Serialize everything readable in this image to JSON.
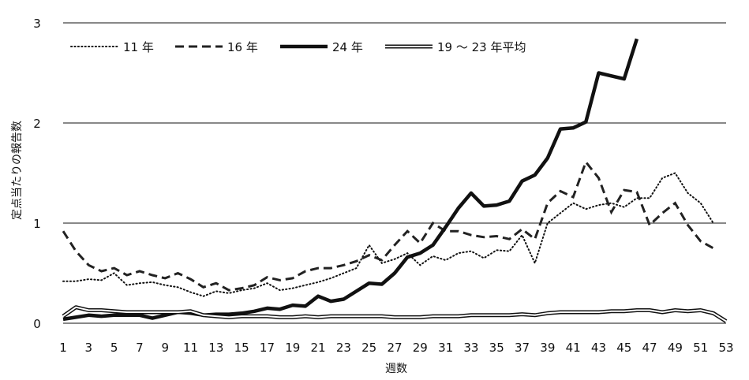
{
  "chart_data": {
    "type": "line",
    "title": "",
    "xlabel": "週数",
    "ylabel": "定点当たりの報告数",
    "ylim": [
      0,
      3
    ],
    "yticks": [
      "0",
      "1",
      "2",
      "3"
    ],
    "xlim": [
      1,
      53
    ],
    "xticks": [
      "1",
      "3",
      "5",
      "7",
      "9",
      "11",
      "13",
      "15",
      "17",
      "19",
      "21",
      "23",
      "25",
      "27",
      "29",
      "31",
      "33",
      "35",
      "37",
      "39",
      "41",
      "43",
      "45",
      "47",
      "49",
      "51",
      "53"
    ],
    "grid": "horizontal",
    "legend_position": "top-left",
    "series": [
      {
        "name": "11 年",
        "style": "dotted",
        "x": [
          1,
          2,
          3,
          4,
          5,
          6,
          7,
          8,
          9,
          10,
          11,
          12,
          13,
          14,
          15,
          16,
          17,
          18,
          19,
          20,
          21,
          22,
          23,
          24,
          25,
          26,
          27,
          28,
          29,
          30,
          31,
          32,
          33,
          34,
          35,
          36,
          37,
          38,
          39,
          40,
          41,
          42,
          43,
          44,
          45,
          46,
          47,
          48,
          49,
          50,
          51,
          52
        ],
        "values": [
          0.42,
          0.42,
          0.44,
          0.43,
          0.5,
          0.38,
          0.4,
          0.41,
          0.38,
          0.36,
          0.31,
          0.27,
          0.32,
          0.3,
          0.33,
          0.35,
          0.4,
          0.33,
          0.35,
          0.38,
          0.41,
          0.45,
          0.5,
          0.55,
          0.78,
          0.6,
          0.64,
          0.7,
          0.58,
          0.67,
          0.63,
          0.7,
          0.72,
          0.65,
          0.73,
          0.72,
          0.88,
          0.6,
          1.0,
          1.1,
          1.2,
          1.14,
          1.18,
          1.2,
          1.16,
          1.25,
          1.25,
          1.45,
          1.5,
          1.3,
          1.2,
          1.0
        ]
      },
      {
        "name": "16 年",
        "style": "dashed",
        "x": [
          1,
          2,
          3,
          4,
          5,
          6,
          7,
          8,
          9,
          10,
          11,
          12,
          13,
          14,
          15,
          16,
          17,
          18,
          19,
          20,
          21,
          22,
          23,
          24,
          25,
          26,
          27,
          28,
          29,
          30,
          31,
          32,
          33,
          34,
          35,
          36,
          37,
          38,
          39,
          40,
          41,
          42,
          43,
          44,
          45,
          46,
          47,
          48,
          49,
          50,
          51,
          52
        ],
        "values": [
          0.92,
          0.72,
          0.58,
          0.52,
          0.55,
          0.48,
          0.52,
          0.48,
          0.45,
          0.5,
          0.44,
          0.36,
          0.4,
          0.33,
          0.35,
          0.38,
          0.46,
          0.43,
          0.45,
          0.52,
          0.55,
          0.55,
          0.58,
          0.62,
          0.68,
          0.63,
          0.78,
          0.92,
          0.8,
          1.0,
          0.92,
          0.92,
          0.88,
          0.86,
          0.87,
          0.84,
          0.94,
          0.84,
          1.2,
          1.32,
          1.26,
          1.61,
          1.45,
          1.11,
          1.33,
          1.31,
          0.98,
          1.1,
          1.2,
          0.98,
          0.82,
          0.75
        ]
      },
      {
        "name": "24 年",
        "style": "solid-bold",
        "x": [
          1,
          2,
          3,
          4,
          5,
          6,
          7,
          8,
          9,
          10,
          11,
          12,
          13,
          14,
          15,
          16,
          17,
          18,
          19,
          20,
          21,
          22,
          23,
          24,
          25,
          26,
          27,
          28,
          29,
          30,
          31,
          32,
          33,
          34,
          35,
          36,
          37,
          38,
          39,
          40,
          41,
          42,
          43,
          44,
          45,
          46
        ],
        "values": [
          0.04,
          0.06,
          0.08,
          0.07,
          0.08,
          0.08,
          0.08,
          0.05,
          0.08,
          0.11,
          0.1,
          0.08,
          0.09,
          0.09,
          0.1,
          0.12,
          0.15,
          0.14,
          0.18,
          0.17,
          0.27,
          0.22,
          0.24,
          0.32,
          0.4,
          0.39,
          0.5,
          0.66,
          0.7,
          0.78,
          0.96,
          1.15,
          1.3,
          1.17,
          1.18,
          1.22,
          1.42,
          1.48,
          1.65,
          1.94,
          1.95,
          2.01,
          2.5,
          2.47,
          2.44,
          2.84
        ]
      },
      {
        "name": "19 ～ 23 年平均",
        "style": "double",
        "x": [
          1,
          2,
          3,
          4,
          5,
          6,
          7,
          8,
          9,
          10,
          11,
          12,
          13,
          14,
          15,
          16,
          17,
          18,
          19,
          20,
          21,
          22,
          23,
          24,
          25,
          26,
          27,
          28,
          29,
          30,
          31,
          32,
          33,
          34,
          35,
          36,
          37,
          38,
          39,
          40,
          41,
          42,
          43,
          44,
          45,
          46,
          47,
          48,
          49,
          50,
          51,
          52,
          53
        ],
        "values": [
          0.07,
          0.16,
          0.13,
          0.13,
          0.12,
          0.11,
          0.11,
          0.11,
          0.11,
          0.11,
          0.12,
          0.08,
          0.07,
          0.06,
          0.07,
          0.07,
          0.07,
          0.06,
          0.06,
          0.07,
          0.06,
          0.07,
          0.07,
          0.07,
          0.07,
          0.07,
          0.06,
          0.06,
          0.06,
          0.07,
          0.07,
          0.07,
          0.08,
          0.08,
          0.08,
          0.08,
          0.09,
          0.08,
          0.1,
          0.11,
          0.11,
          0.11,
          0.11,
          0.12,
          0.12,
          0.13,
          0.13,
          0.11,
          0.13,
          0.12,
          0.13,
          0.1,
          0.02
        ]
      }
    ]
  }
}
